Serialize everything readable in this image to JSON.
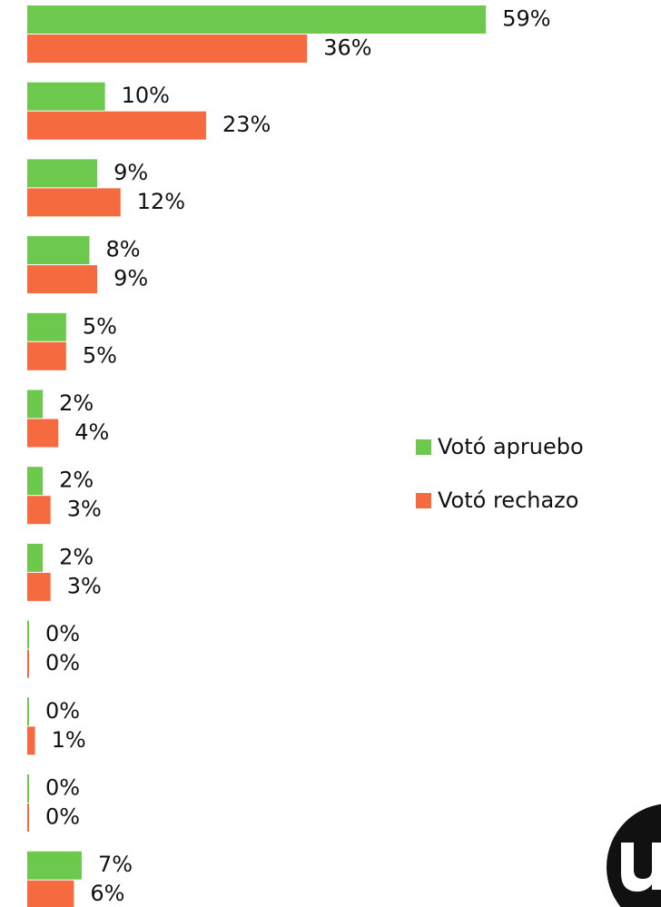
{
  "chart_data": {
    "type": "bar",
    "orientation": "horizontal",
    "categories": [
      null,
      null,
      null,
      null,
      null,
      null,
      null,
      null,
      null,
      null,
      null,
      null
    ],
    "series": [
      {
        "name": "Votó apruebo",
        "color": "#6cc94e",
        "values": [
          59,
          10,
          9,
          8,
          5,
          2,
          2,
          2,
          0,
          0,
          0,
          7
        ],
        "value_labels": [
          "59%",
          "10%",
          "9%",
          "8%",
          "5%",
          "2%",
          "2%",
          "2%",
          "0%",
          "0%",
          "0%",
          "7%"
        ]
      },
      {
        "name": "Votó rechazo",
        "color": "#f56a3f",
        "values": [
          36,
          23,
          12,
          9,
          5,
          4,
          3,
          3,
          0,
          1,
          0,
          6
        ],
        "value_labels": [
          "36%",
          "23%",
          "12%",
          "9%",
          "5%",
          "4%",
          "3%",
          "3%",
          "0%",
          "1%",
          "0%",
          "6%"
        ]
      }
    ],
    "xlim": [
      0,
      80
    ],
    "legend": "right"
  }
}
